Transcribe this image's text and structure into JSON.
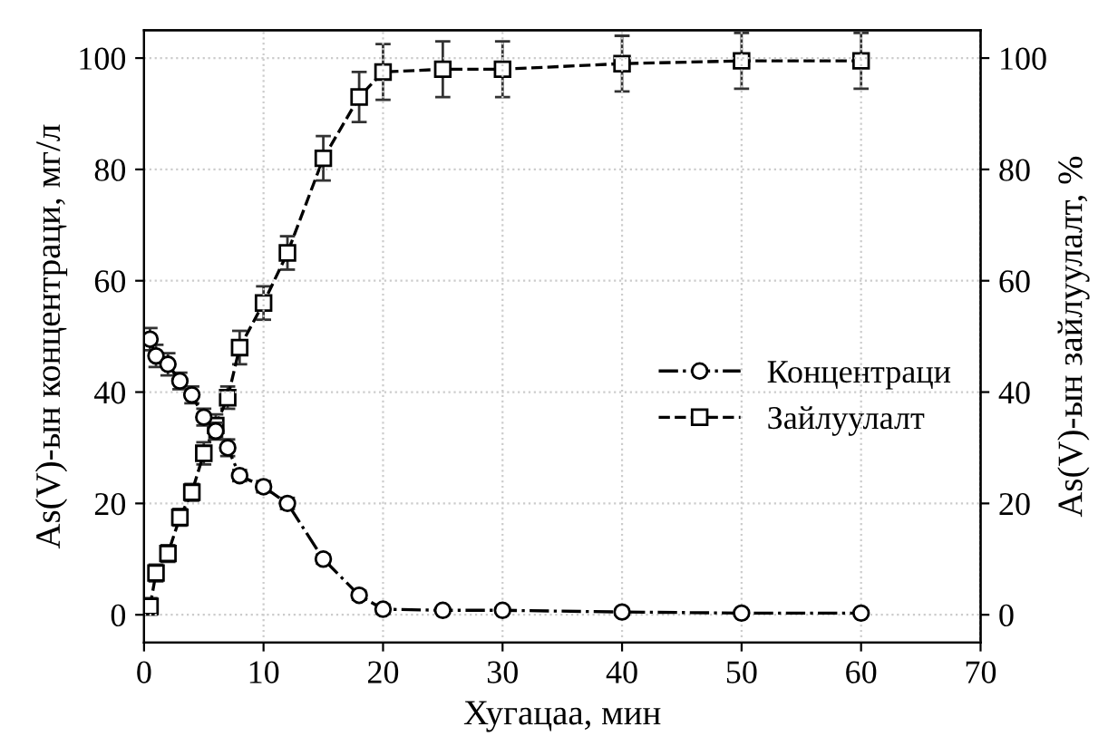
{
  "chart_data": {
    "type": "line",
    "xlabel": "Хугацаа, мин",
    "ylabel": "As(V)-ын концентраци, мг/л",
    "y2label": "As(V)-ын зайлуулалт, %",
    "xlim": [
      0,
      70
    ],
    "xticks": [
      0,
      10,
      20,
      30,
      40,
      50,
      60,
      70
    ],
    "ylim": [
      -5,
      105
    ],
    "yticks": [
      0,
      20,
      40,
      60,
      80,
      100
    ],
    "y2lim": [
      -5,
      105
    ],
    "y2ticks": [
      0,
      20,
      40,
      60,
      80,
      100
    ],
    "grid": true,
    "legend": "right",
    "x": [
      0.5,
      1,
      2,
      3,
      4,
      5,
      6,
      7,
      8,
      10,
      12,
      15,
      18,
      20,
      25,
      30,
      40,
      50,
      60
    ],
    "series": [
      {
        "name": "Концентраци",
        "color": "#000000",
        "marker": "circle",
        "line_style": "dashdot",
        "values": [
          49.5,
          46.5,
          45,
          42,
          39.5,
          35.5,
          33,
          30,
          25,
          23,
          20,
          10,
          3.5,
          1,
          0.8,
          0.8,
          0.5,
          0.3,
          0.3
        ],
        "errors": [
          2,
          2,
          2,
          1.5,
          1.5,
          1.5,
          1.5,
          1.5,
          1,
          1,
          1,
          0.8,
          0.8,
          0.8,
          0.5,
          0.5,
          0.5,
          0.5,
          0.5
        ]
      },
      {
        "name": "Зайлуулалт",
        "color": "#000000",
        "marker": "square",
        "line_style": "dashed",
        "axis": "y2",
        "values": [
          1.5,
          7.5,
          11,
          17.5,
          22,
          29,
          34,
          39,
          48,
          56,
          65,
          82,
          93,
          97.5,
          98,
          98,
          99,
          99.5,
          99.5
        ],
        "errors": [
          1.5,
          1.5,
          1.5,
          1.5,
          1.5,
          2,
          2,
          2,
          3,
          3,
          3,
          4,
          4.5,
          5,
          5,
          5,
          5,
          5,
          5
        ]
      }
    ]
  }
}
